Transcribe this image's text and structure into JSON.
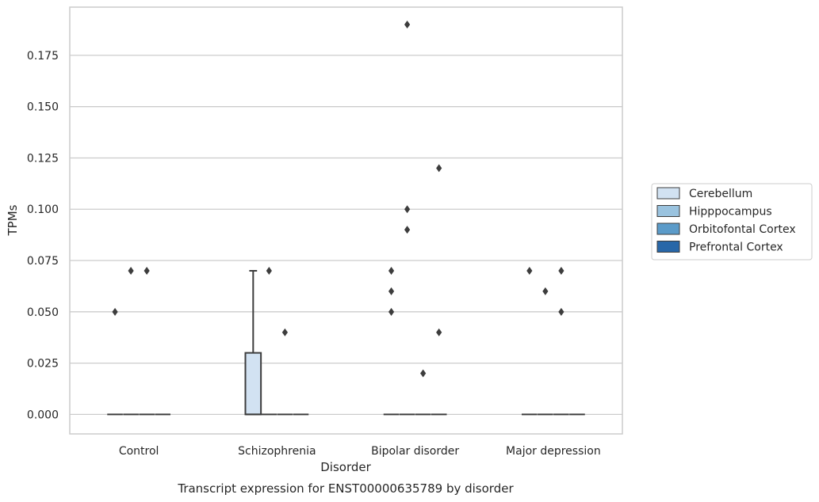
{
  "chart_data": {
    "type": "box",
    "title": "",
    "caption": "Transcript expression for ENST00000635789 by disorder",
    "xlabel": "Disorder",
    "ylabel": "TPMs",
    "ylim": [
      -0.0095,
      0.1985
    ],
    "yticks": [
      0.0,
      0.025,
      0.05,
      0.075,
      0.1,
      0.125,
      0.15,
      0.175
    ],
    "ytick_labels": [
      "0.000",
      "0.025",
      "0.050",
      "0.075",
      "0.100",
      "0.125",
      "0.150",
      "0.175"
    ],
    "grid": "horizontal",
    "legend_position": "right",
    "categories": [
      "Control",
      "Schizophrenia",
      "Bipolar disorder",
      "Major depression"
    ],
    "series": [
      {
        "name": "Cerebellum",
        "color": "#d2e2f2",
        "boxes": [
          {
            "q1": 0,
            "median": 0,
            "q3": 0,
            "whisker_low": 0,
            "whisker_high": 0,
            "outliers": [
              0.05
            ]
          },
          {
            "q1": 0,
            "median": 0,
            "q3": 0.03,
            "whisker_low": 0,
            "whisker_high": 0.07,
            "outliers": []
          },
          {
            "q1": 0,
            "median": 0,
            "q3": 0,
            "whisker_low": 0,
            "whisker_high": 0,
            "outliers": [
              0.07,
              0.06,
              0.05
            ]
          },
          {
            "q1": 0,
            "median": 0,
            "q3": 0,
            "whisker_low": 0,
            "whisker_high": 0,
            "outliers": [
              0.07
            ]
          }
        ]
      },
      {
        "name": "Hipppocampus",
        "color": "#9ac3df",
        "boxes": [
          {
            "q1": 0,
            "median": 0,
            "q3": 0,
            "whisker_low": 0,
            "whisker_high": 0,
            "outliers": [
              0.07
            ]
          },
          {
            "q1": 0,
            "median": 0,
            "q3": 0,
            "whisker_low": 0,
            "whisker_high": 0,
            "outliers": [
              0.07
            ]
          },
          {
            "q1": 0,
            "median": 0,
            "q3": 0,
            "whisker_low": 0,
            "whisker_high": 0,
            "outliers": [
              0.19,
              0.1,
              0.09
            ]
          },
          {
            "q1": 0,
            "median": 0,
            "q3": 0,
            "whisker_low": 0,
            "whisker_high": 0,
            "outliers": [
              0.06
            ]
          }
        ]
      },
      {
        "name": "Orbitofontal Cortex",
        "color": "#5b9bc9",
        "boxes": [
          {
            "q1": 0,
            "median": 0,
            "q3": 0,
            "whisker_low": 0,
            "whisker_high": 0,
            "outliers": [
              0.07
            ]
          },
          {
            "q1": 0,
            "median": 0,
            "q3": 0,
            "whisker_low": 0,
            "whisker_high": 0,
            "outliers": [
              0.04
            ]
          },
          {
            "q1": 0,
            "median": 0,
            "q3": 0,
            "whisker_low": 0,
            "whisker_high": 0,
            "outliers": [
              0.02
            ]
          },
          {
            "q1": 0,
            "median": 0,
            "q3": 0,
            "whisker_low": 0,
            "whisker_high": 0,
            "outliers": [
              0.07,
              0.05
            ]
          }
        ]
      },
      {
        "name": "Prefrontal Cortex",
        "color": "#2867a8",
        "boxes": [
          {
            "q1": 0,
            "median": 0,
            "q3": 0,
            "whisker_low": 0,
            "whisker_high": 0,
            "outliers": []
          },
          {
            "q1": 0,
            "median": 0,
            "q3": 0,
            "whisker_low": 0,
            "whisker_high": 0,
            "outliers": []
          },
          {
            "q1": 0,
            "median": 0,
            "q3": 0,
            "whisker_low": 0,
            "whisker_high": 0,
            "outliers": [
              0.12,
              0.04
            ]
          },
          {
            "q1": 0,
            "median": 0,
            "q3": 0,
            "whisker_low": 0,
            "whisker_high": 0,
            "outliers": []
          }
        ]
      }
    ]
  }
}
